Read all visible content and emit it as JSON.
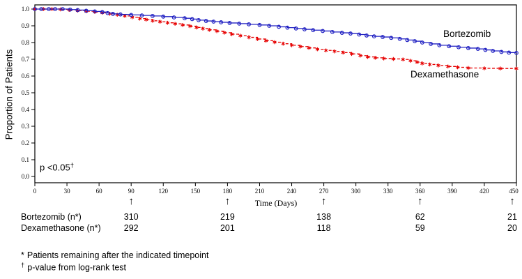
{
  "chart": {
    "y_axis_label": "Proportion of Patients",
    "x_axis_label": "Time (Days)",
    "p_text": "p <0.05",
    "p_sup": "†",
    "label_bortezomib": "Bortezomib",
    "label_dexamethasone": "Dexamethasone"
  },
  "chart_data": {
    "type": "line",
    "subtype": "kaplan-meier-step",
    "title": "",
    "xlabel": "Time (Days)",
    "ylabel": "Proportion of Patients",
    "xlim": [
      0,
      450
    ],
    "ylim": [
      0.0,
      1.0
    ],
    "x_ticks": [
      0,
      30,
      60,
      90,
      120,
      150,
      180,
      210,
      240,
      270,
      300,
      330,
      360,
      390,
      420,
      450
    ],
    "y_ticks": [
      0.0,
      0.1,
      0.2,
      0.3,
      0.4,
      0.5,
      0.6,
      0.7,
      0.8,
      0.9,
      1.0
    ],
    "grid": false,
    "annotation": "p <0.05†",
    "legend_position": "right-inline",
    "series": [
      {
        "name": "Dexamethasone",
        "color": "#E60000",
        "marker": "asterisk",
        "line_style": "dashed",
        "points": [
          [
            0,
            1.0
          ],
          [
            8,
            1.0
          ],
          [
            16,
            1.0
          ],
          [
            24,
            0.998
          ],
          [
            32,
            0.995
          ],
          [
            40,
            0.991
          ],
          [
            48,
            0.987
          ],
          [
            56,
            0.983
          ],
          [
            63,
            0.978
          ],
          [
            70,
            0.972
          ],
          [
            77,
            0.966
          ],
          [
            84,
            0.959
          ],
          [
            91,
            0.951
          ],
          [
            98,
            0.943
          ],
          [
            104,
            0.937
          ],
          [
            110,
            0.93
          ],
          [
            117,
            0.924
          ],
          [
            124,
            0.918
          ],
          [
            131,
            0.912
          ],
          [
            138,
            0.905
          ],
          [
            145,
            0.898
          ],
          [
            151,
            0.89
          ],
          [
            157,
            0.883
          ],
          [
            163,
            0.876
          ],
          [
            170,
            0.868
          ],
          [
            177,
            0.859
          ],
          [
            184,
            0.85
          ],
          [
            192,
            0.841
          ],
          [
            200,
            0.831
          ],
          [
            208,
            0.821
          ],
          [
            216,
            0.811
          ],
          [
            224,
            0.802
          ],
          [
            232,
            0.793
          ],
          [
            240,
            0.784
          ],
          [
            248,
            0.776
          ],
          [
            256,
            0.768
          ],
          [
            264,
            0.76
          ],
          [
            272,
            0.753
          ],
          [
            280,
            0.747
          ],
          [
            288,
            0.74
          ],
          [
            296,
            0.732
          ],
          [
            304,
            0.722
          ],
          [
            311,
            0.714
          ],
          [
            318,
            0.709
          ],
          [
            326,
            0.705
          ],
          [
            335,
            0.702
          ],
          [
            344,
            0.699
          ],
          [
            351,
            0.691
          ],
          [
            357,
            0.683
          ],
          [
            362,
            0.675
          ],
          [
            369,
            0.669
          ],
          [
            377,
            0.663
          ],
          [
            386,
            0.657
          ],
          [
            395,
            0.652
          ],
          [
            405,
            0.648
          ],
          [
            420,
            0.646
          ],
          [
            435,
            0.645
          ],
          [
            450,
            0.645
          ]
        ]
      },
      {
        "name": "Bortezomib",
        "color": "#2121C2",
        "marker": "circle-open",
        "line_style": "solid",
        "points": [
          [
            0,
            1.0
          ],
          [
            6,
            1.0
          ],
          [
            13,
            1.0
          ],
          [
            19,
            1.0
          ],
          [
            26,
            1.0
          ],
          [
            33,
            0.997
          ],
          [
            40,
            0.994
          ],
          [
            48,
            0.99
          ],
          [
            56,
            0.986
          ],
          [
            63,
            0.982
          ],
          [
            68,
            0.976
          ],
          [
            73,
            0.971
          ],
          [
            80,
            0.968
          ],
          [
            90,
            0.965
          ],
          [
            100,
            0.962
          ],
          [
            110,
            0.959
          ],
          [
            120,
            0.955
          ],
          [
            130,
            0.95
          ],
          [
            140,
            0.945
          ],
          [
            147,
            0.94
          ],
          [
            153,
            0.934
          ],
          [
            160,
            0.929
          ],
          [
            167,
            0.925
          ],
          [
            174,
            0.921
          ],
          [
            182,
            0.917
          ],
          [
            191,
            0.913
          ],
          [
            200,
            0.909
          ],
          [
            210,
            0.905
          ],
          [
            219,
            0.9
          ],
          [
            228,
            0.894
          ],
          [
            236,
            0.889
          ],
          [
            244,
            0.884
          ],
          [
            252,
            0.879
          ],
          [
            260,
            0.874
          ],
          [
            269,
            0.869
          ],
          [
            278,
            0.863
          ],
          [
            287,
            0.858
          ],
          [
            295,
            0.854
          ],
          [
            303,
            0.848
          ],
          [
            310,
            0.842
          ],
          [
            317,
            0.837
          ],
          [
            325,
            0.833
          ],
          [
            333,
            0.828
          ],
          [
            341,
            0.822
          ],
          [
            348,
            0.815
          ],
          [
            355,
            0.808
          ],
          [
            362,
            0.8
          ],
          [
            370,
            0.792
          ],
          [
            378,
            0.784
          ],
          [
            387,
            0.778
          ],
          [
            396,
            0.772
          ],
          [
            405,
            0.767
          ],
          [
            414,
            0.762
          ],
          [
            421,
            0.756
          ],
          [
            428,
            0.75
          ],
          [
            436,
            0.744
          ],
          [
            443,
            0.74
          ],
          [
            450,
            0.738
          ]
        ]
      }
    ],
    "at_risk": {
      "arrow_symbol": "↑",
      "arrow_days": [
        90,
        180,
        270,
        360,
        450
      ],
      "rows": [
        {
          "label": "Bortezomib (n*)",
          "values": [
            "310",
            "219",
            "138",
            "62",
            "21"
          ]
        },
        {
          "label": "Dexamethasone (n*)",
          "values": [
            "292",
            "201",
            "118",
            "59",
            "20"
          ]
        }
      ]
    }
  },
  "footnotes": [
    {
      "symbol": "*",
      "text": "Patients remaining after the indicated timepoint"
    },
    {
      "symbol": "†",
      "text": "p-value from log-rank test"
    }
  ]
}
